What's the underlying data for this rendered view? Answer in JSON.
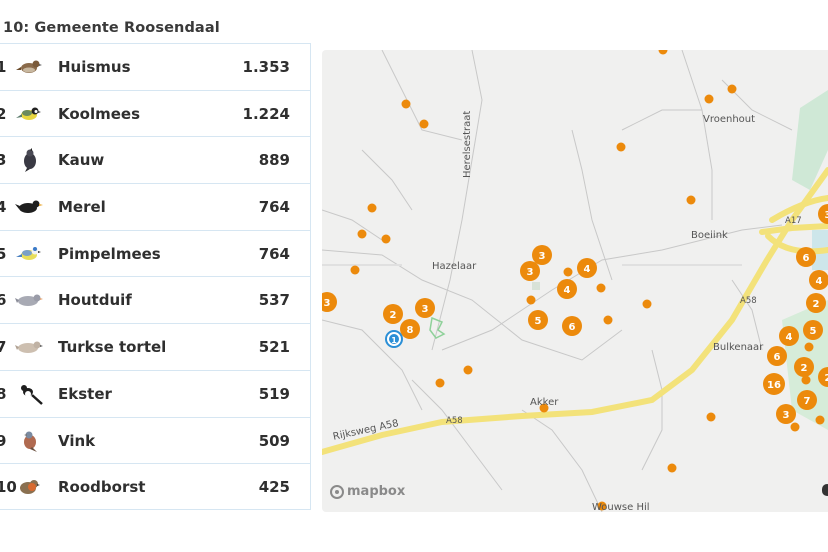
{
  "title": "10: Gemeente Roosendaal",
  "birds": [
    {
      "rank": "1",
      "name": "Huismus",
      "count": "1.353",
      "icon": "house-sparrow-icon"
    },
    {
      "rank": "2",
      "name": "Koolmees",
      "count": "1.224",
      "icon": "great-tit-icon"
    },
    {
      "rank": "3",
      "name": "Kauw",
      "count": "889",
      "icon": "jackdaw-icon"
    },
    {
      "rank": "4",
      "name": "Merel",
      "count": "764",
      "icon": "blackbird-icon"
    },
    {
      "rank": "5",
      "name": "Pimpelmees",
      "count": "764",
      "icon": "blue-tit-icon"
    },
    {
      "rank": "6",
      "name": "Houtduif",
      "count": "537",
      "icon": "wood-pigeon-icon"
    },
    {
      "rank": "7",
      "name": "Turkse tortel",
      "count": "521",
      "icon": "collared-dove-icon"
    },
    {
      "rank": "8",
      "name": "Ekster",
      "count": "519",
      "icon": "magpie-icon"
    },
    {
      "rank": "9",
      "name": "Vink",
      "count": "509",
      "icon": "chaffinch-icon"
    },
    {
      "rank": "10",
      "name": "Roodborst",
      "count": "425",
      "icon": "robin-icon"
    }
  ],
  "map": {
    "labels": {
      "vroenhout": "Vroenhout",
      "herelsestraat": "Herelsestraat",
      "boeiink": "Boeiink",
      "hazelaar": "Hazelaar",
      "a17": "A17",
      "a58_east": "A58",
      "bulkenaar": "Bulkenaar",
      "akker": "Akker",
      "rijksweg": "Rijksweg A58",
      "a58_mid": "A58",
      "wouwse_hil": "Wouwse Hil"
    },
    "attribution": "mapbox",
    "colors": {
      "marker": "#ec8a0c",
      "motorway": "#f3e27a",
      "water": "#cde6ea",
      "green": "#cfe8d6",
      "selected": "#2b8fd6"
    },
    "clusters": [
      "3",
      "3",
      "4",
      "4",
      "5",
      "6",
      "2",
      "3",
      "8",
      "3",
      "6",
      "4",
      "2",
      "5",
      "4",
      "6",
      "2",
      "16",
      "3",
      "7",
      "3",
      "1",
      "2"
    ]
  }
}
